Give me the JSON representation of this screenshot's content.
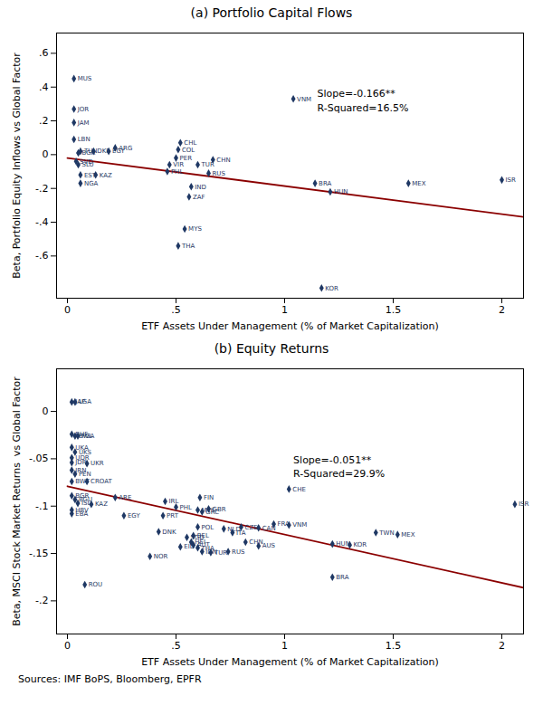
{
  "chart_data": [
    {
      "type": "scatter",
      "title": "(a) Portfolio Capital Flows",
      "xlabel": "ETF Assets Under Management (% of Market Capitalization)",
      "ylabel": "Beta, Portfolio Equity Inflows vs Global Factor",
      "xlim": [
        -0.05,
        2.1
      ],
      "ylim": [
        -0.85,
        0.72
      ],
      "xticks": [
        0,
        {
          "value": 0.5,
          "label": ".5"
        },
        1,
        1.5,
        2
      ],
      "yticks": [
        {
          "value": -0.6,
          "label": "-.6"
        },
        {
          "value": -0.4,
          "label": "-.4"
        },
        {
          "value": -0.2,
          "label": "-.2"
        },
        0,
        {
          "value": 0.2,
          "label": ".2"
        },
        {
          "value": 0.4,
          "label": ".4"
        },
        {
          "value": 0.6,
          "label": ".6"
        }
      ],
      "color": "#1f3864",
      "marker": "diamond",
      "labels": [
        "MUS",
        "JOR",
        "JAM",
        "LBN",
        "ARG",
        "EGY",
        "BGR",
        "TUN",
        "DKF",
        "SVD",
        "SLU",
        "EST",
        "KAZ",
        "NGA",
        "CHL",
        "COL",
        "PER",
        "VIR",
        "PHL",
        "TUR",
        "CHN",
        "RUS",
        "IND",
        "ZAF",
        "MYS",
        "THA",
        "BRA",
        "HUN",
        "VNM",
        "MEX",
        "KOR",
        "ISR"
      ],
      "x": [
        0.03,
        0.03,
        0.03,
        0.03,
        0.22,
        0.19,
        0.05,
        0.06,
        0.12,
        0.04,
        0.05,
        0.06,
        0.13,
        0.06,
        0.52,
        0.51,
        0.5,
        0.47,
        0.46,
        0.6,
        0.67,
        0.65,
        0.57,
        0.56,
        0.54,
        0.51,
        1.14,
        1.21,
        1.04,
        1.57,
        1.17,
        2.0
      ],
      "y": [
        0.45,
        0.27,
        0.19,
        0.09,
        0.04,
        0.02,
        0.01,
        0.02,
        0.02,
        -0.04,
        -0.06,
        -0.12,
        -0.12,
        -0.17,
        0.07,
        0.03,
        -0.02,
        -0.06,
        -0.1,
        -0.06,
        -0.03,
        -0.11,
        -0.19,
        -0.25,
        -0.44,
        -0.54,
        -0.17,
        -0.22,
        0.33,
        -0.17,
        -0.79,
        -0.15
      ],
      "regression": {
        "slope": -0.166,
        "intercept": -0.02,
        "x_range": [
          0,
          2.1
        ],
        "color": "#8b0000"
      },
      "annotations": [
        {
          "text": "Slope=-0.166**\nR-Squared=16.5%",
          "x": 1.15,
          "y": 0.4
        }
      ]
    },
    {
      "type": "scatter",
      "title": "(b) Equity Returns",
      "xlabel": "ETF Assets Under Management (% of Market Capitalization)",
      "ylabel": "Beta, MSCI Stock Market Returns  vs Global Factor",
      "xlim": [
        -0.05,
        2.1
      ],
      "ylim": [
        -0.235,
        0.045
      ],
      "xticks": [
        0,
        {
          "value": 0.5,
          "label": ".5"
        },
        1,
        1.5,
        2
      ],
      "yticks": [
        {
          "value": -0.2,
          "label": "-.2"
        },
        {
          "value": -0.15,
          "label": "-.15"
        },
        {
          "value": -0.1,
          "label": "-.1"
        },
        {
          "value": -0.05,
          "label": "-.05"
        },
        0
      ],
      "color": "#1f3864",
      "marker": "diamond",
      "labels": [
        "JAP",
        "LGA",
        "BHF",
        "BWL",
        "FGA",
        "UKA",
        "UKS",
        "UDR",
        "JDR",
        "UKR",
        "IRN",
        "PEN",
        "BWT",
        "CROAT",
        "BGR",
        "BGU",
        "ISL",
        "HRV",
        "EBA",
        "KAZ",
        "ARE",
        "EGY",
        "PRT",
        "IRL",
        "PHL",
        "MYS",
        "FIN",
        "GBR",
        "GRC",
        "NLD",
        "POL",
        "DNK",
        "BEL",
        "SGD",
        "HEI",
        "AUT",
        "EID",
        "THA",
        "IDN",
        "NOR",
        "TUR",
        "CZE",
        "ITA",
        "CAN",
        "FRA",
        "RUS",
        "CHN",
        "AUS",
        "VNM",
        "HUN",
        "KOR",
        "CHE",
        "TWN",
        "MEX",
        "BRA",
        "ROU",
        "ISR"
      ],
      "x": [
        0.02,
        0.035,
        0.02,
        0.035,
        0.048,
        0.02,
        0.035,
        0.02,
        0.02,
        0.09,
        0.02,
        0.035,
        0.02,
        0.09,
        0.02,
        0.035,
        0.048,
        0.02,
        0.02,
        0.11,
        0.22,
        0.26,
        0.44,
        0.45,
        0.5,
        0.6,
        0.61,
        0.65,
        0.62,
        0.72,
        0.6,
        0.42,
        0.58,
        0.55,
        0.57,
        0.58,
        0.52,
        0.6,
        0.62,
        0.38,
        0.66,
        0.8,
        0.76,
        0.88,
        0.95,
        0.74,
        0.82,
        0.88,
        1.02,
        1.22,
        1.3,
        1.02,
        1.42,
        1.52,
        1.22,
        0.08,
        2.06
      ],
      "y": [
        0.01,
        0.01,
        -0.024,
        -0.026,
        -0.026,
        -0.038,
        -0.043,
        -0.049,
        -0.054,
        -0.055,
        -0.062,
        -0.066,
        -0.074,
        -0.074,
        -0.089,
        -0.093,
        -0.097,
        -0.104,
        -0.108,
        -0.098,
        -0.091,
        -0.11,
        -0.11,
        -0.095,
        -0.101,
        -0.104,
        -0.091,
        -0.103,
        -0.106,
        -0.124,
        -0.122,
        -0.127,
        -0.131,
        -0.133,
        -0.138,
        -0.141,
        -0.143,
        -0.144,
        -0.148,
        -0.153,
        -0.149,
        -0.122,
        -0.128,
        -0.123,
        -0.119,
        -0.148,
        -0.138,
        -0.142,
        -0.12,
        -0.14,
        -0.141,
        -0.082,
        -0.128,
        -0.13,
        -0.175,
        -0.183,
        -0.098
      ],
      "regression": {
        "slope": -0.051,
        "intercept": -0.079,
        "x_range": [
          0,
          2.1
        ],
        "color": "#8b0000"
      },
      "annotations": [
        {
          "text": "Slope=-0.051**\nR-Squared=29.9%",
          "x": 1.04,
          "y": -0.044
        }
      ],
      "caption": "Sources: IMF BoPS, Bloomberg, EPFR"
    }
  ]
}
